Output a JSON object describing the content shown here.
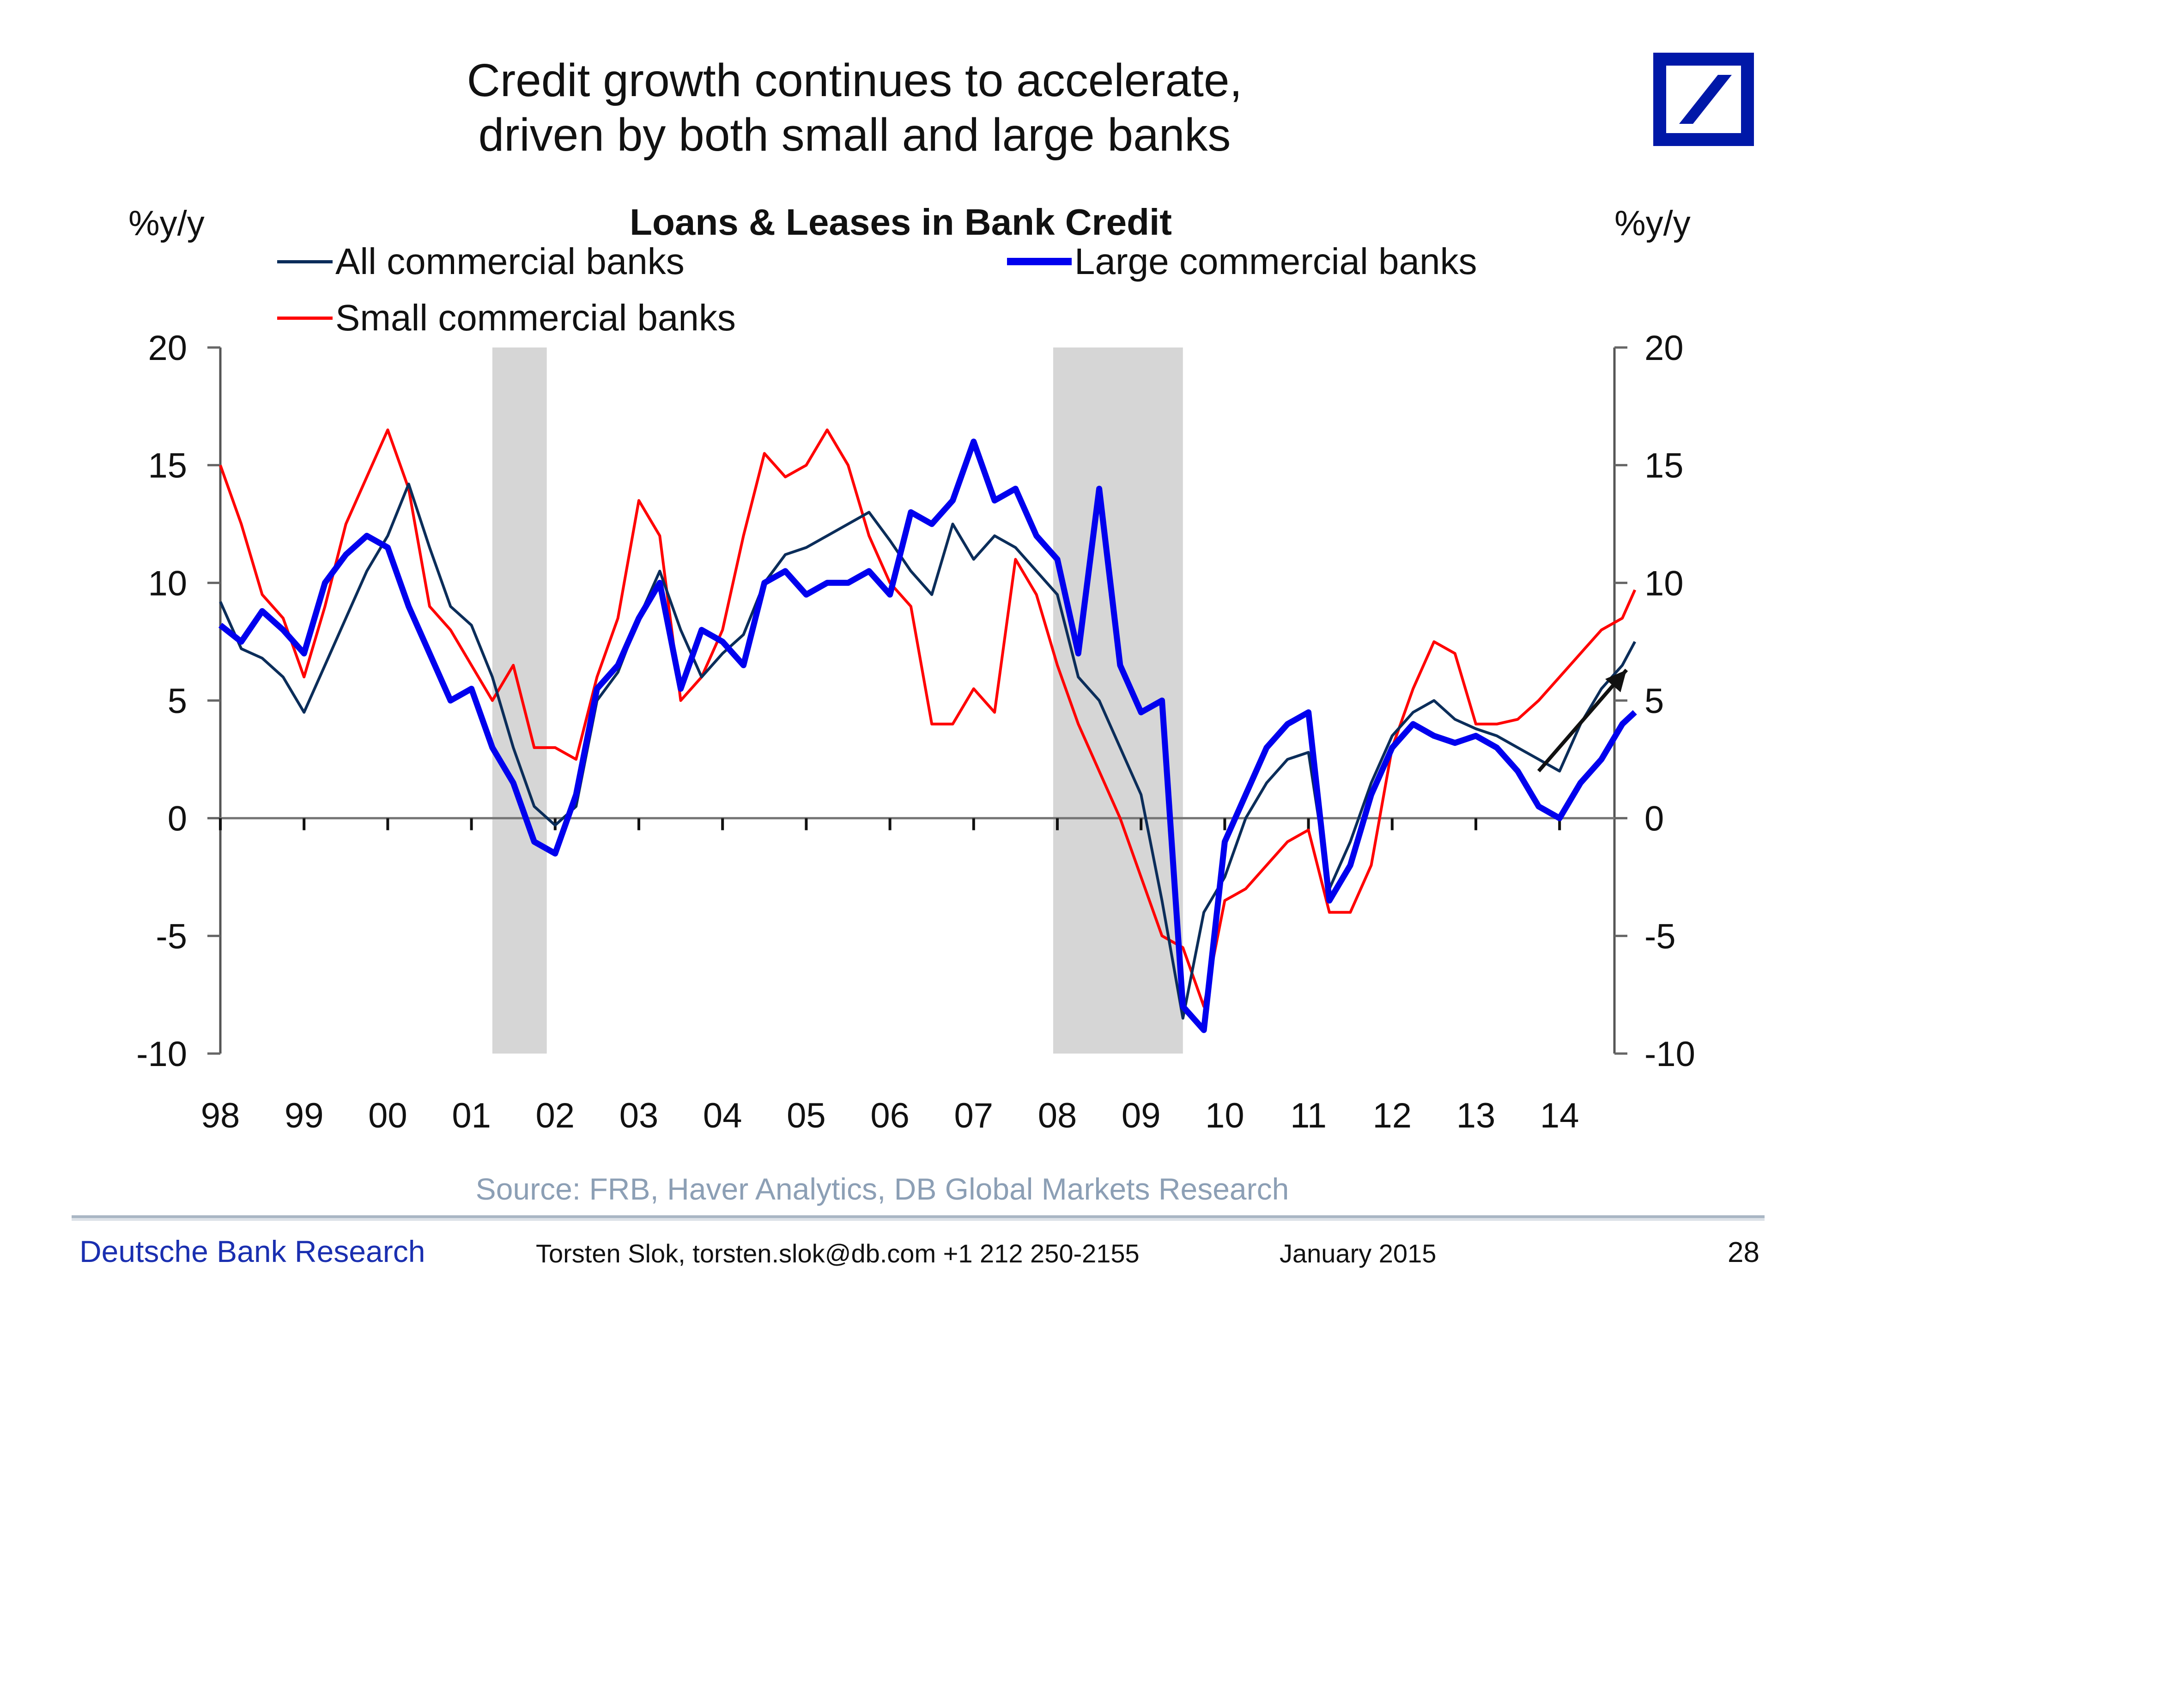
{
  "header": {
    "title_line1": "Credit growth continues to accelerate,",
    "title_line2": "driven by both small and large banks",
    "logo": "deutsche-bank-logo"
  },
  "chart_data": {
    "type": "line",
    "title": "Loans & Leases in Bank Credit",
    "ylabel_left": "%y/y",
    "ylabel_right": "%y/y",
    "xlabel": "",
    "ylim": [
      -10,
      20
    ],
    "yticks": [
      20,
      15,
      10,
      5,
      0,
      -5,
      -10
    ],
    "xlim": [
      1998,
      2014.9
    ],
    "xticks": [
      "98",
      "99",
      "00",
      "01",
      "02",
      "03",
      "04",
      "05",
      "06",
      "07",
      "08",
      "09",
      "10",
      "11",
      "12",
      "13",
      "14"
    ],
    "xtick_years": [
      1998,
      1999,
      2000,
      2001,
      2002,
      2003,
      2004,
      2005,
      2006,
      2007,
      2008,
      2009,
      2010,
      2011,
      2012,
      2013,
      2014
    ],
    "legend": [
      "All commercial banks",
      "Large commercial banks",
      "Small commercial banks"
    ],
    "legend_position": "top",
    "recessions": [
      [
        2001.25,
        2001.9
      ],
      [
        2007.95,
        2009.5
      ]
    ],
    "annotation": "upward arrow highlighting acceleration in 2013-2014",
    "x": [
      1998.0,
      1998.25,
      1998.5,
      1998.75,
      1999.0,
      1999.25,
      1999.5,
      1999.75,
      2000.0,
      2000.25,
      2000.5,
      2000.75,
      2001.0,
      2001.25,
      2001.5,
      2001.75,
      2002.0,
      2002.25,
      2002.5,
      2002.75,
      2003.0,
      2003.25,
      2003.5,
      2003.75,
      2004.0,
      2004.25,
      2004.5,
      2004.75,
      2005.0,
      2005.25,
      2005.5,
      2005.75,
      2006.0,
      2006.25,
      2006.5,
      2006.75,
      2007.0,
      2007.25,
      2007.5,
      2007.75,
      2008.0,
      2008.25,
      2008.5,
      2008.75,
      2009.0,
      2009.25,
      2009.5,
      2009.75,
      2010.0,
      2010.25,
      2010.5,
      2010.75,
      2011.0,
      2011.25,
      2011.5,
      2011.75,
      2012.0,
      2012.25,
      2012.5,
      2012.75,
      2013.0,
      2013.25,
      2013.5,
      2013.75,
      2014.0,
      2014.25,
      2014.5,
      2014.75,
      2014.9
    ],
    "series": [
      {
        "name": "All commercial banks",
        "color": "#0b2d5a",
        "values": [
          9.2,
          7.2,
          6.8,
          6.0,
          4.5,
          6.5,
          8.5,
          10.5,
          12.0,
          14.2,
          11.5,
          9.0,
          8.2,
          6.0,
          3.0,
          0.5,
          -0.3,
          0.5,
          5.0,
          6.2,
          8.5,
          10.5,
          8.0,
          6.0,
          7.0,
          7.8,
          10.0,
          11.2,
          11.5,
          12.0,
          12.5,
          13.0,
          11.8,
          10.5,
          9.5,
          12.5,
          11.0,
          12.0,
          11.5,
          10.5,
          9.5,
          6.0,
          5.0,
          3.0,
          1.0,
          -3.5,
          -8.5,
          -4.0,
          -2.5,
          0.0,
          1.5,
          2.5,
          2.8,
          -3.0,
          -1.0,
          1.5,
          3.5,
          4.5,
          5.0,
          4.2,
          3.8,
          3.5,
          3.0,
          2.5,
          2.0,
          4.0,
          5.5,
          6.5,
          7.5
        ]
      },
      {
        "name": "Large commercial banks",
        "color": "#0000ee",
        "values": [
          8.2,
          7.5,
          8.8,
          8.0,
          7.0,
          10.0,
          11.2,
          12.0,
          11.5,
          9.0,
          7.0,
          5.0,
          5.5,
          3.0,
          1.5,
          -1.0,
          -1.5,
          1.0,
          5.5,
          6.5,
          8.5,
          10.0,
          5.5,
          8.0,
          7.5,
          6.5,
          10.0,
          10.5,
          9.5,
          10.0,
          10.0,
          10.5,
          9.5,
          13.0,
          12.5,
          13.5,
          16.0,
          13.5,
          14.0,
          12.0,
          11.0,
          7.0,
          14.0,
          6.5,
          4.5,
          5.0,
          -8.0,
          -9.0,
          -1.0,
          1.0,
          3.0,
          4.0,
          4.5,
          -3.5,
          -2.0,
          1.0,
          3.0,
          4.0,
          3.5,
          3.2,
          3.5,
          3.0,
          2.0,
          0.5,
          0.0,
          1.5,
          2.5,
          4.0,
          4.5
        ]
      },
      {
        "name": "Small commercial banks",
        "color": "#ff0000",
        "values": [
          15.0,
          12.5,
          9.5,
          8.5,
          6.0,
          9.0,
          12.5,
          14.5,
          16.5,
          14.0,
          9.0,
          8.0,
          6.5,
          5.0,
          6.5,
          3.0,
          3.0,
          2.5,
          6.0,
          8.5,
          13.5,
          12.0,
          5.0,
          6.0,
          8.0,
          12.0,
          15.5,
          14.5,
          15.0,
          16.5,
          15.0,
          12.0,
          10.0,
          9.0,
          4.0,
          4.0,
          5.5,
          4.5,
          11.0,
          9.5,
          6.5,
          4.0,
          2.0,
          0.0,
          -2.5,
          -5.0,
          -5.5,
          -8.0,
          -3.5,
          -3.0,
          -2.0,
          -1.0,
          -0.5,
          -4.0,
          -4.0,
          -2.0,
          3.0,
          5.5,
          7.5,
          7.0,
          4.0,
          4.0,
          4.2,
          5.0,
          6.0,
          7.0,
          8.0,
          8.5,
          9.7
        ]
      }
    ]
  },
  "footer": {
    "source": "Source: FRB, Haver Analytics, DB Global Markets Research",
    "brand": "Deutsche Bank Research",
    "author": "Torsten Slok, torsten.slok@db.com  +1 212 250-2155",
    "date": "January 2015",
    "page": "28"
  }
}
